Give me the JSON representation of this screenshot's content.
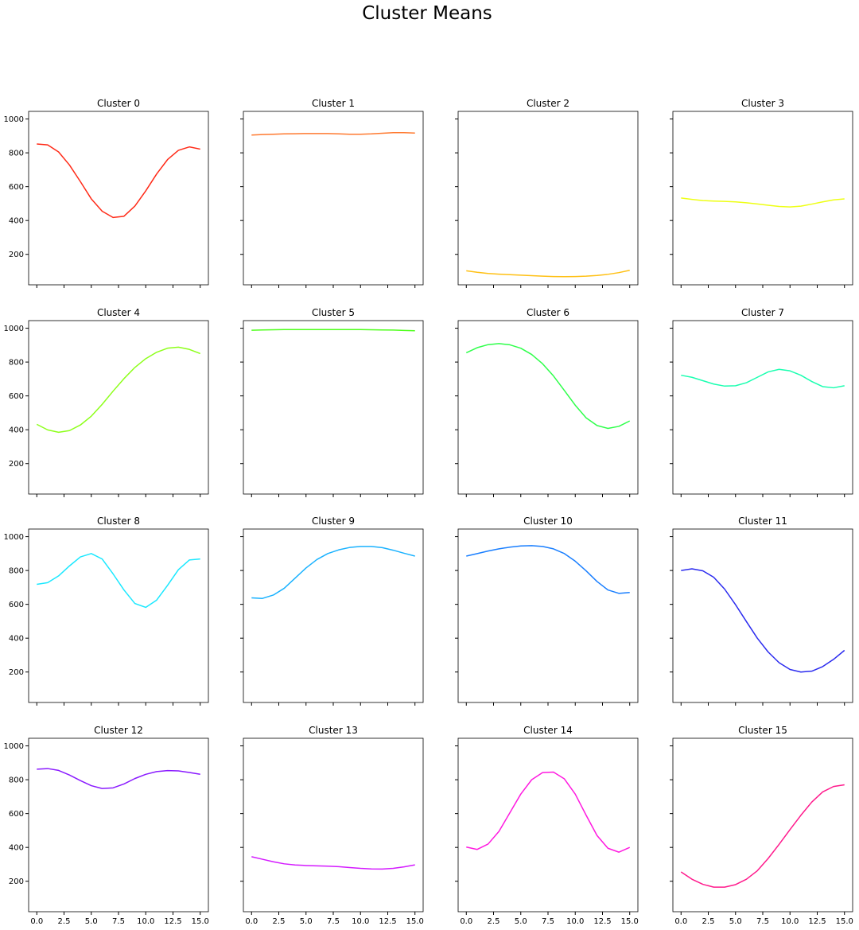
{
  "figure": {
    "title": "Cluster Means"
  },
  "chart_data": [
    {
      "type": "line",
      "title": "Cluster 0",
      "color": "#ff2a17",
      "x": [
        0,
        1,
        2,
        3,
        4,
        5,
        6,
        7,
        8,
        9,
        10,
        11,
        12,
        13,
        14,
        15
      ],
      "values": [
        852,
        847,
        805,
        728,
        630,
        528,
        455,
        418,
        425,
        485,
        575,
        675,
        760,
        815,
        835,
        822
      ],
      "xlim": [
        -0.75,
        15.75
      ],
      "ylim": [
        20,
        1045
      ],
      "xticks": [
        0,
        2.5,
        5,
        7.5,
        10,
        12.5,
        15
      ],
      "yticks": [
        200,
        400,
        600,
        800,
        1000
      ],
      "xlabel": "",
      "ylabel": ""
    },
    {
      "type": "line",
      "title": "Cluster 1",
      "color": "#ff7a30",
      "x": [
        0,
        1,
        2,
        3,
        4,
        5,
        6,
        7,
        8,
        9,
        10,
        11,
        12,
        13,
        14,
        15
      ],
      "values": [
        905,
        908,
        910,
        912,
        913,
        914,
        914,
        914,
        912,
        910,
        910,
        912,
        916,
        919,
        919,
        917
      ],
      "xlim": [
        -0.75,
        15.75
      ],
      "ylim": [
        20,
        1045
      ],
      "xticks": [
        0,
        2.5,
        5,
        7.5,
        10,
        12.5,
        15
      ],
      "yticks": [
        200,
        400,
        600,
        800,
        1000
      ],
      "xlabel": "",
      "ylabel": ""
    },
    {
      "type": "line",
      "title": "Cluster 2",
      "color": "#ffc014",
      "x": [
        0,
        1,
        2,
        3,
        4,
        5,
        6,
        7,
        8,
        9,
        10,
        11,
        12,
        13,
        14,
        15
      ],
      "values": [
        103,
        94,
        87,
        83,
        80,
        77,
        74,
        71,
        69,
        68,
        69,
        71,
        75,
        82,
        92,
        106
      ],
      "xlim": [
        -0.75,
        15.75
      ],
      "ylim": [
        20,
        1045
      ],
      "xticks": [
        0,
        2.5,
        5,
        7.5,
        10,
        12.5,
        15
      ],
      "yticks": [
        200,
        400,
        600,
        800,
        1000
      ],
      "xlabel": "",
      "ylabel": ""
    },
    {
      "type": "line",
      "title": "Cluster 3",
      "color": "#eeff14",
      "x": [
        0,
        1,
        2,
        3,
        4,
        5,
        6,
        7,
        8,
        9,
        10,
        11,
        12,
        13,
        14,
        15
      ],
      "values": [
        533,
        525,
        518,
        515,
        513,
        510,
        505,
        498,
        490,
        483,
        480,
        485,
        497,
        510,
        522,
        528
      ],
      "xlim": [
        -0.75,
        15.75
      ],
      "ylim": [
        20,
        1045
      ],
      "xticks": [
        0,
        2.5,
        5,
        7.5,
        10,
        12.5,
        15
      ],
      "yticks": [
        200,
        400,
        600,
        800,
        1000
      ],
      "xlabel": "",
      "ylabel": ""
    },
    {
      "type": "line",
      "title": "Cluster 4",
      "color": "#8dff1a",
      "x": [
        0,
        1,
        2,
        3,
        4,
        5,
        6,
        7,
        8,
        9,
        10,
        11,
        12,
        13,
        14,
        15
      ],
      "values": [
        432,
        399,
        385,
        395,
        428,
        480,
        550,
        628,
        702,
        768,
        820,
        858,
        882,
        888,
        875,
        850
      ],
      "xlim": [
        -0.75,
        15.75
      ],
      "ylim": [
        20,
        1045
      ],
      "xticks": [
        0,
        2.5,
        5,
        7.5,
        10,
        12.5,
        15
      ],
      "yticks": [
        200,
        400,
        600,
        800,
        1000
      ],
      "xlabel": "",
      "ylabel": ""
    },
    {
      "type": "line",
      "title": "Cluster 5",
      "color": "#4dff1a",
      "x": [
        0,
        1,
        2,
        3,
        4,
        5,
        6,
        7,
        8,
        9,
        10,
        11,
        12,
        13,
        14,
        15
      ],
      "values": [
        988,
        990,
        991,
        992,
        992,
        992,
        992,
        992,
        992,
        992,
        992,
        991,
        990,
        989,
        987,
        985
      ],
      "xlim": [
        -0.75,
        15.75
      ],
      "ylim": [
        20,
        1045
      ],
      "xticks": [
        0,
        2.5,
        5,
        7.5,
        10,
        12.5,
        15
      ],
      "yticks": [
        200,
        400,
        600,
        800,
        1000
      ],
      "xlabel": "",
      "ylabel": ""
    },
    {
      "type": "line",
      "title": "Cluster 6",
      "color": "#2eff4a",
      "x": [
        0,
        1,
        2,
        3,
        4,
        5,
        6,
        7,
        8,
        9,
        10,
        11,
        12,
        13,
        14,
        15
      ],
      "values": [
        855,
        885,
        903,
        909,
        902,
        882,
        845,
        790,
        718,
        632,
        545,
        470,
        425,
        408,
        420,
        452
      ],
      "xlim": [
        -0.75,
        15.75
      ],
      "ylim": [
        20,
        1045
      ],
      "xticks": [
        0,
        2.5,
        5,
        7.5,
        10,
        12.5,
        15
      ],
      "yticks": [
        200,
        400,
        600,
        800,
        1000
      ],
      "xlabel": "",
      "ylabel": ""
    },
    {
      "type": "line",
      "title": "Cluster 7",
      "color": "#1affb0",
      "x": [
        0,
        1,
        2,
        3,
        4,
        5,
        6,
        7,
        8,
        9,
        10,
        11,
        12,
        13,
        14,
        15
      ],
      "values": [
        722,
        710,
        690,
        670,
        658,
        660,
        678,
        710,
        742,
        757,
        748,
        722,
        685,
        655,
        648,
        660
      ],
      "xlim": [
        -0.75,
        15.75
      ],
      "ylim": [
        20,
        1045
      ],
      "xticks": [
        0,
        2.5,
        5,
        7.5,
        10,
        12.5,
        15
      ],
      "yticks": [
        200,
        400,
        600,
        800,
        1000
      ],
      "xlabel": "",
      "ylabel": ""
    },
    {
      "type": "line",
      "title": "Cluster 8",
      "color": "#1ae8ff",
      "x": [
        0,
        1,
        2,
        3,
        4,
        5,
        6,
        7,
        8,
        9,
        10,
        11,
        12,
        13,
        14,
        15
      ],
      "values": [
        718,
        728,
        768,
        827,
        880,
        900,
        868,
        780,
        685,
        605,
        582,
        625,
        712,
        805,
        862,
        868
      ],
      "xlim": [
        -0.75,
        15.75
      ],
      "ylim": [
        20,
        1045
      ],
      "xticks": [
        0,
        2.5,
        5,
        7.5,
        10,
        12.5,
        15
      ],
      "yticks": [
        200,
        400,
        600,
        800,
        1000
      ],
      "xlabel": "",
      "ylabel": ""
    },
    {
      "type": "line",
      "title": "Cluster 9",
      "color": "#1ab2ff",
      "x": [
        0,
        1,
        2,
        3,
        4,
        5,
        6,
        7,
        8,
        9,
        10,
        11,
        12,
        13,
        14,
        15
      ],
      "values": [
        638,
        635,
        655,
        695,
        755,
        815,
        865,
        900,
        922,
        936,
        942,
        942,
        935,
        920,
        902,
        885
      ],
      "xlim": [
        -0.75,
        15.75
      ],
      "ylim": [
        20,
        1045
      ],
      "xticks": [
        0,
        2.5,
        5,
        7.5,
        10,
        12.5,
        15
      ],
      "yticks": [
        200,
        400,
        600,
        800,
        1000
      ],
      "xlabel": "",
      "ylabel": ""
    },
    {
      "type": "line",
      "title": "Cluster 10",
      "color": "#1a7fff",
      "x": [
        0,
        1,
        2,
        3,
        4,
        5,
        6,
        7,
        8,
        9,
        10,
        11,
        12,
        13,
        14,
        15
      ],
      "values": [
        885,
        900,
        915,
        928,
        938,
        945,
        947,
        942,
        928,
        900,
        855,
        798,
        735,
        685,
        665,
        670
      ],
      "xlim": [
        -0.75,
        15.75
      ],
      "ylim": [
        20,
        1045
      ],
      "xticks": [
        0,
        2.5,
        5,
        7.5,
        10,
        12.5,
        15
      ],
      "yticks": [
        200,
        400,
        600,
        800,
        1000
      ],
      "xlabel": "",
      "ylabel": ""
    },
    {
      "type": "line",
      "title": "Cluster 11",
      "color": "#2b2bef",
      "x": [
        0,
        1,
        2,
        3,
        4,
        5,
        6,
        7,
        8,
        9,
        10,
        11,
        12,
        13,
        14,
        15
      ],
      "values": [
        800,
        810,
        798,
        760,
        690,
        598,
        498,
        400,
        318,
        255,
        215,
        200,
        205,
        232,
        275,
        328
      ],
      "xlim": [
        -0.75,
        15.75
      ],
      "ylim": [
        20,
        1045
      ],
      "xticks": [
        0,
        2.5,
        5,
        7.5,
        10,
        12.5,
        15
      ],
      "yticks": [
        200,
        400,
        600,
        800,
        1000
      ],
      "xlabel": "",
      "ylabel": ""
    },
    {
      "type": "line",
      "title": "Cluster 12",
      "color": "#8a1aff",
      "x": [
        0,
        1,
        2,
        3,
        4,
        5,
        6,
        7,
        8,
        9,
        10,
        11,
        12,
        13,
        14,
        15
      ],
      "values": [
        862,
        866,
        855,
        828,
        795,
        765,
        748,
        752,
        775,
        807,
        832,
        848,
        854,
        852,
        843,
        832
      ],
      "xlim": [
        -0.75,
        15.75
      ],
      "ylim": [
        20,
        1045
      ],
      "xticks": [
        0,
        2.5,
        5,
        7.5,
        10,
        12.5,
        15
      ],
      "yticks": [
        200,
        400,
        600,
        800,
        1000
      ],
      "xlabel": "",
      "ylabel": ""
    },
    {
      "type": "line",
      "title": "Cluster 13",
      "color": "#d41aff",
      "x": [
        0,
        1,
        2,
        3,
        4,
        5,
        6,
        7,
        8,
        9,
        10,
        11,
        12,
        13,
        14,
        15
      ],
      "values": [
        345,
        330,
        315,
        303,
        296,
        293,
        291,
        289,
        286,
        281,
        276,
        273,
        272,
        276,
        285,
        297
      ],
      "xlim": [
        -0.75,
        15.75
      ],
      "ylim": [
        20,
        1045
      ],
      "xticks": [
        0,
        2.5,
        5,
        7.5,
        10,
        12.5,
        15
      ],
      "yticks": [
        200,
        400,
        600,
        800,
        1000
      ],
      "xlabel": "",
      "ylabel": ""
    },
    {
      "type": "line",
      "title": "Cluster 14",
      "color": "#ff1ae0",
      "x": [
        0,
        1,
        2,
        3,
        4,
        5,
        6,
        7,
        8,
        9,
        10,
        11,
        12,
        13,
        14,
        15
      ],
      "values": [
        402,
        388,
        420,
        495,
        605,
        715,
        800,
        842,
        845,
        805,
        715,
        590,
        470,
        395,
        372,
        400
      ],
      "xlim": [
        -0.75,
        15.75
      ],
      "ylim": [
        20,
        1045
      ],
      "xticks": [
        0,
        2.5,
        5,
        7.5,
        10,
        12.5,
        15
      ],
      "yticks": [
        200,
        400,
        600,
        800,
        1000
      ],
      "xlabel": "",
      "ylabel": ""
    },
    {
      "type": "line",
      "title": "Cluster 15",
      "color": "#ff1a8c",
      "x": [
        0,
        1,
        2,
        3,
        4,
        5,
        6,
        7,
        8,
        9,
        10,
        11,
        12,
        13,
        14,
        15
      ],
      "values": [
        255,
        212,
        182,
        165,
        165,
        180,
        212,
        262,
        335,
        418,
        505,
        590,
        668,
        728,
        760,
        770
      ],
      "xlim": [
        -0.75,
        15.75
      ],
      "ylim": [
        20,
        1045
      ],
      "xticks": [
        0,
        2.5,
        5,
        7.5,
        10,
        12.5,
        15
      ],
      "yticks": [
        200,
        400,
        600,
        800,
        1000
      ],
      "xlabel": "",
      "ylabel": ""
    }
  ]
}
